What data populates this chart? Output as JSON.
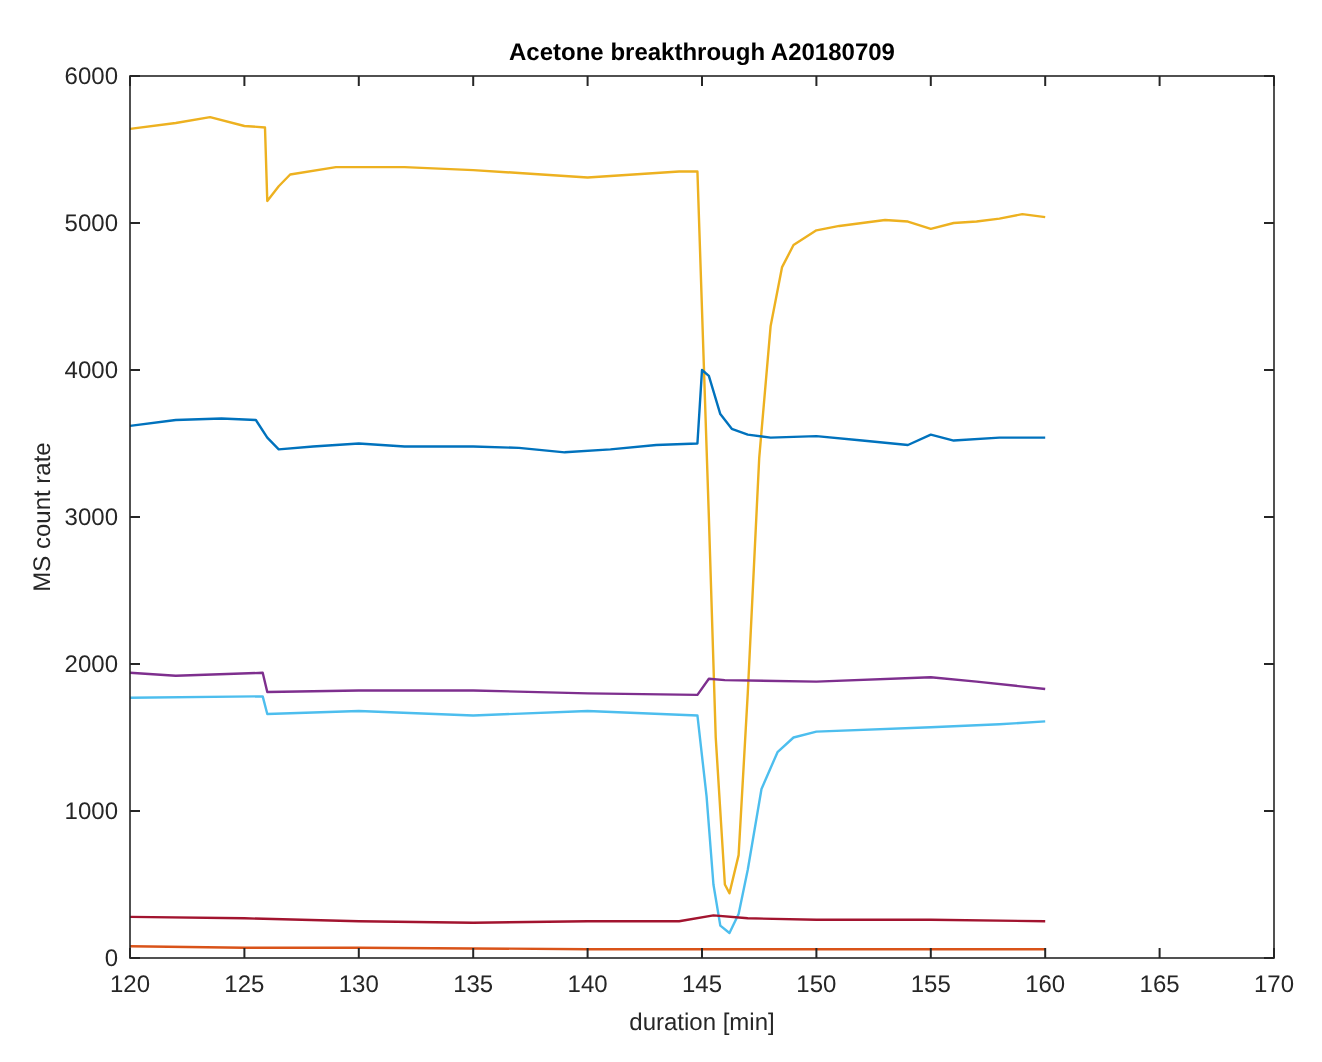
{
  "chart_data": {
    "type": "line",
    "title": "Acetone breakthrough A20180709",
    "xlabel": "duration [min]",
    "ylabel": "MS count rate",
    "xlim": [
      120,
      170
    ],
    "xticks": [
      120,
      125,
      130,
      135,
      140,
      145,
      150,
      155,
      160,
      165,
      170
    ],
    "ylim": [
      0,
      6000
    ],
    "yticks": [
      0,
      1000,
      2000,
      3000,
      4000,
      5000,
      6000
    ],
    "grid": false,
    "series": [
      {
        "color": "#edb120",
        "x": [
          120,
          122,
          123.5,
          125,
          125.9,
          126,
          126.5,
          127,
          129,
          132,
          135,
          137,
          140,
          142,
          144,
          144.8,
          145.3,
          145.6,
          146,
          146.2,
          146.6,
          147,
          147.5,
          148,
          148.5,
          149,
          150,
          151,
          152,
          153,
          154,
          155,
          156,
          157,
          158,
          159,
          160
        ],
        "values": [
          5640,
          5680,
          5720,
          5660,
          5650,
          5150,
          5250,
          5330,
          5380,
          5380,
          5360,
          5340,
          5310,
          5330,
          5350,
          5350,
          3000,
          1500,
          500,
          440,
          700,
          1800,
          3400,
          4300,
          4700,
          4850,
          4950,
          4980,
          5000,
          5020,
          5010,
          4960,
          5000,
          5010,
          5030,
          5060,
          5040
        ]
      },
      {
        "color": "#0072bd",
        "x": [
          120,
          122,
          124,
          125.5,
          126,
          126.5,
          128,
          130,
          132,
          135,
          137,
          139,
          141,
          143,
          144.8,
          145,
          145.3,
          145.8,
          146.3,
          147,
          148,
          150,
          152,
          154,
          155,
          156,
          158,
          160
        ],
        "values": [
          3620,
          3660,
          3670,
          3660,
          3540,
          3460,
          3480,
          3500,
          3480,
          3480,
          3470,
          3440,
          3460,
          3490,
          3500,
          4000,
          3960,
          3700,
          3600,
          3560,
          3540,
          3550,
          3520,
          3490,
          3560,
          3520,
          3540,
          3540
        ]
      },
      {
        "color": "#7e2f8e",
        "x": [
          120,
          122,
          125.8,
          126,
          130,
          135,
          140,
          144.8,
          145.3,
          146,
          150,
          155,
          157,
          160
        ],
        "values": [
          1940,
          1920,
          1940,
          1810,
          1820,
          1820,
          1800,
          1790,
          1900,
          1890,
          1880,
          1910,
          1880,
          1830
        ]
      },
      {
        "color": "#4dbeee",
        "x": [
          120,
          125.8,
          126,
          130,
          135,
          140,
          144.8,
          145.2,
          145.5,
          145.8,
          146.2,
          146.6,
          147,
          147.6,
          148.3,
          149,
          150,
          155,
          158,
          160
        ],
        "values": [
          1770,
          1780,
          1660,
          1680,
          1650,
          1680,
          1650,
          1100,
          500,
          220,
          170,
          300,
          600,
          1150,
          1400,
          1500,
          1540,
          1570,
          1590,
          1610
        ]
      },
      {
        "color": "#a2142f",
        "x": [
          120,
          125,
          130,
          135,
          140,
          144,
          145.5,
          147,
          150,
          155,
          160
        ],
        "values": [
          280,
          270,
          250,
          240,
          250,
          250,
          290,
          270,
          260,
          260,
          250
        ]
      },
      {
        "color": "#d95319",
        "x": [
          120,
          125,
          130,
          140,
          150,
          160
        ],
        "values": [
          80,
          70,
          70,
          60,
          60,
          60
        ]
      }
    ]
  }
}
